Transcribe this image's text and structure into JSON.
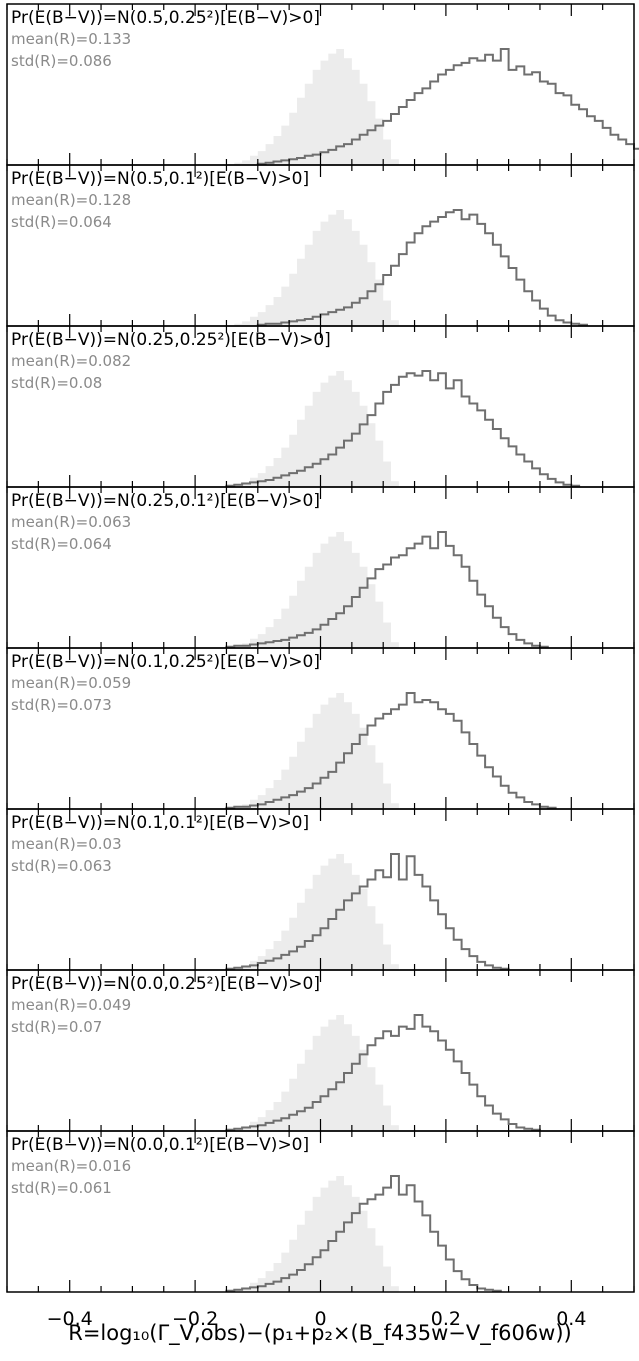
{
  "chart_data": {
    "type": "histogram",
    "xlabel": "R=log₁₀(Γ_V,obs)−(p₁+p₂×(B_f435w−V_f606w))",
    "xlim": [
      -0.5,
      0.5
    ],
    "xticks": [
      -0.4,
      -0.2,
      0,
      0.2,
      0.4
    ],
    "xtick_labels": [
      "−0.4",
      "−0.2",
      "0",
      "0.2",
      "0.4"
    ],
    "bin_width": 0.0125,
    "colors": {
      "prior_outline": "#6f6f6f",
      "reference_fill": "#ececec",
      "stats_text": "#8a8a8a"
    },
    "reference_histogram": {
      "description_style": "light grey filled",
      "x_start": -0.1375,
      "values": [
        0.02,
        0.04,
        0.08,
        0.12,
        0.18,
        0.25,
        0.34,
        0.45,
        0.58,
        0.7,
        0.82,
        0.9,
        0.96,
        1.0,
        0.92,
        0.82,
        0.7,
        0.55,
        0.4,
        0.22,
        0.05
      ]
    },
    "panels": [
      {
        "title": "Pr(E(B−V))=N(0.5,0.25²)[E(B−V)>0]",
        "mean_label": "mean(R)=0.133",
        "std_label": "std(R)=0.086",
        "x_start": -0.1,
        "values": [
          0.01,
          0.02,
          0.03,
          0.04,
          0.05,
          0.06,
          0.08,
          0.09,
          0.11,
          0.13,
          0.16,
          0.18,
          0.22,
          0.26,
          0.3,
          0.34,
          0.38,
          0.44,
          0.5,
          0.56,
          0.62,
          0.66,
          0.72,
          0.78,
          0.82,
          0.86,
          0.88,
          0.92,
          0.9,
          0.95,
          0.9,
          1.0,
          0.82,
          0.85,
          0.78,
          0.8,
          0.72,
          0.7,
          0.62,
          0.6,
          0.52,
          0.48,
          0.42,
          0.38,
          0.32,
          0.26,
          0.22,
          0.18,
          0.14,
          0.1,
          0.07,
          0.05,
          0.03,
          0.02,
          0.01
        ]
      },
      {
        "title": "Pr(E(B−V))=N(0.5,0.1²)[E(B−V)>0]",
        "mean_label": "mean(R)=0.128",
        "std_label": "std(R)=0.064",
        "x_start": -0.1,
        "values": [
          0.01,
          0.02,
          0.02,
          0.03,
          0.04,
          0.05,
          0.06,
          0.08,
          0.1,
          0.12,
          0.14,
          0.16,
          0.2,
          0.24,
          0.3,
          0.36,
          0.44,
          0.52,
          0.62,
          0.72,
          0.8,
          0.86,
          0.9,
          0.94,
          0.98,
          1.0,
          0.92,
          0.96,
          0.88,
          0.8,
          0.7,
          0.6,
          0.5,
          0.4,
          0.3,
          0.22,
          0.15,
          0.09,
          0.05,
          0.03,
          0.02,
          0.01
        ]
      },
      {
        "title": "Pr(E(B−V))=N(0.25,0.25²)[E(B−V)>0]",
        "mean_label": "mean(R)=0.082",
        "std_label": "std(R)=0.08",
        "x_start": -0.15,
        "values": [
          0.01,
          0.02,
          0.03,
          0.04,
          0.05,
          0.06,
          0.08,
          0.1,
          0.12,
          0.14,
          0.17,
          0.2,
          0.24,
          0.28,
          0.34,
          0.4,
          0.46,
          0.54,
          0.62,
          0.72,
          0.82,
          0.88,
          0.95,
          0.98,
          0.96,
          1.0,
          0.92,
          0.98,
          0.85,
          0.92,
          0.78,
          0.72,
          0.66,
          0.58,
          0.5,
          0.42,
          0.35,
          0.28,
          0.22,
          0.16,
          0.11,
          0.07,
          0.04,
          0.02,
          0.01
        ]
      },
      {
        "title": "Pr(E(B−V))=N(0.25,0.1²)[E(B−V)>0]",
        "mean_label": "mean(R)=0.063",
        "std_label": "std(R)=0.064",
        "x_start": -0.15,
        "values": [
          0.01,
          0.02,
          0.02,
          0.03,
          0.04,
          0.05,
          0.06,
          0.07,
          0.09,
          0.11,
          0.13,
          0.16,
          0.2,
          0.25,
          0.3,
          0.36,
          0.44,
          0.52,
          0.6,
          0.68,
          0.72,
          0.78,
          0.8,
          0.86,
          0.9,
          0.96,
          0.86,
          1.0,
          0.88,
          0.8,
          0.7,
          0.58,
          0.46,
          0.36,
          0.26,
          0.18,
          0.12,
          0.07,
          0.04,
          0.02,
          0.01
        ]
      },
      {
        "title": "Pr(E(B−V))=N(0.1,0.25²)[E(B−V)>0]",
        "mean_label": "mean(R)=0.059",
        "std_label": "std(R)=0.073",
        "x_start": -0.15,
        "values": [
          0.01,
          0.02,
          0.02,
          0.03,
          0.04,
          0.06,
          0.08,
          0.1,
          0.12,
          0.15,
          0.18,
          0.22,
          0.27,
          0.32,
          0.4,
          0.48,
          0.56,
          0.64,
          0.72,
          0.78,
          0.82,
          0.86,
          0.9,
          1.0,
          0.92,
          0.94,
          0.92,
          0.86,
          0.82,
          0.76,
          0.66,
          0.56,
          0.46,
          0.36,
          0.28,
          0.2,
          0.14,
          0.1,
          0.06,
          0.04,
          0.02,
          0.01
        ]
      },
      {
        "title": "Pr(E(B−V))=N(0.1,0.1²)[E(B−V)>0]",
        "mean_label": "mean(R)=0.03",
        "std_label": "std(R)=0.063",
        "x_start": -0.15,
        "values": [
          0.01,
          0.02,
          0.03,
          0.04,
          0.06,
          0.08,
          0.1,
          0.13,
          0.16,
          0.2,
          0.25,
          0.3,
          0.36,
          0.44,
          0.52,
          0.6,
          0.66,
          0.72,
          0.78,
          0.86,
          0.8,
          1.0,
          0.78,
          0.98,
          0.82,
          0.72,
          0.6,
          0.48,
          0.36,
          0.26,
          0.18,
          0.12,
          0.07,
          0.04,
          0.02,
          0.01
        ]
      },
      {
        "title": "Pr(E(B−V))=N(0.0,0.25²)[E(B−V)>0]",
        "mean_label": "mean(R)=0.049",
        "std_label": "std(R)=0.07",
        "x_start": -0.15,
        "values": [
          0.01,
          0.02,
          0.03,
          0.04,
          0.05,
          0.07,
          0.09,
          0.11,
          0.14,
          0.17,
          0.2,
          0.25,
          0.3,
          0.36,
          0.42,
          0.5,
          0.58,
          0.66,
          0.74,
          0.8,
          0.86,
          0.82,
          0.9,
          0.88,
          1.0,
          0.9,
          0.86,
          0.78,
          0.7,
          0.6,
          0.5,
          0.4,
          0.3,
          0.22,
          0.15,
          0.1,
          0.06,
          0.03,
          0.02,
          0.01
        ]
      },
      {
        "title": "Pr(E(B−V))=N(0.0,0.1²)[E(B−V)>0]",
        "mean_label": "mean(R)=0.016",
        "std_label": "std(R)=0.061",
        "x_start": -0.15,
        "values": [
          0.01,
          0.02,
          0.03,
          0.04,
          0.05,
          0.07,
          0.09,
          0.12,
          0.15,
          0.19,
          0.24,
          0.3,
          0.36,
          0.44,
          0.52,
          0.6,
          0.68,
          0.76,
          0.8,
          0.84,
          0.9,
          1.0,
          0.84,
          0.92,
          0.78,
          0.66,
          0.52,
          0.4,
          0.28,
          0.18,
          0.11,
          0.06,
          0.03,
          0.02,
          0.01
        ]
      }
    ]
  }
}
